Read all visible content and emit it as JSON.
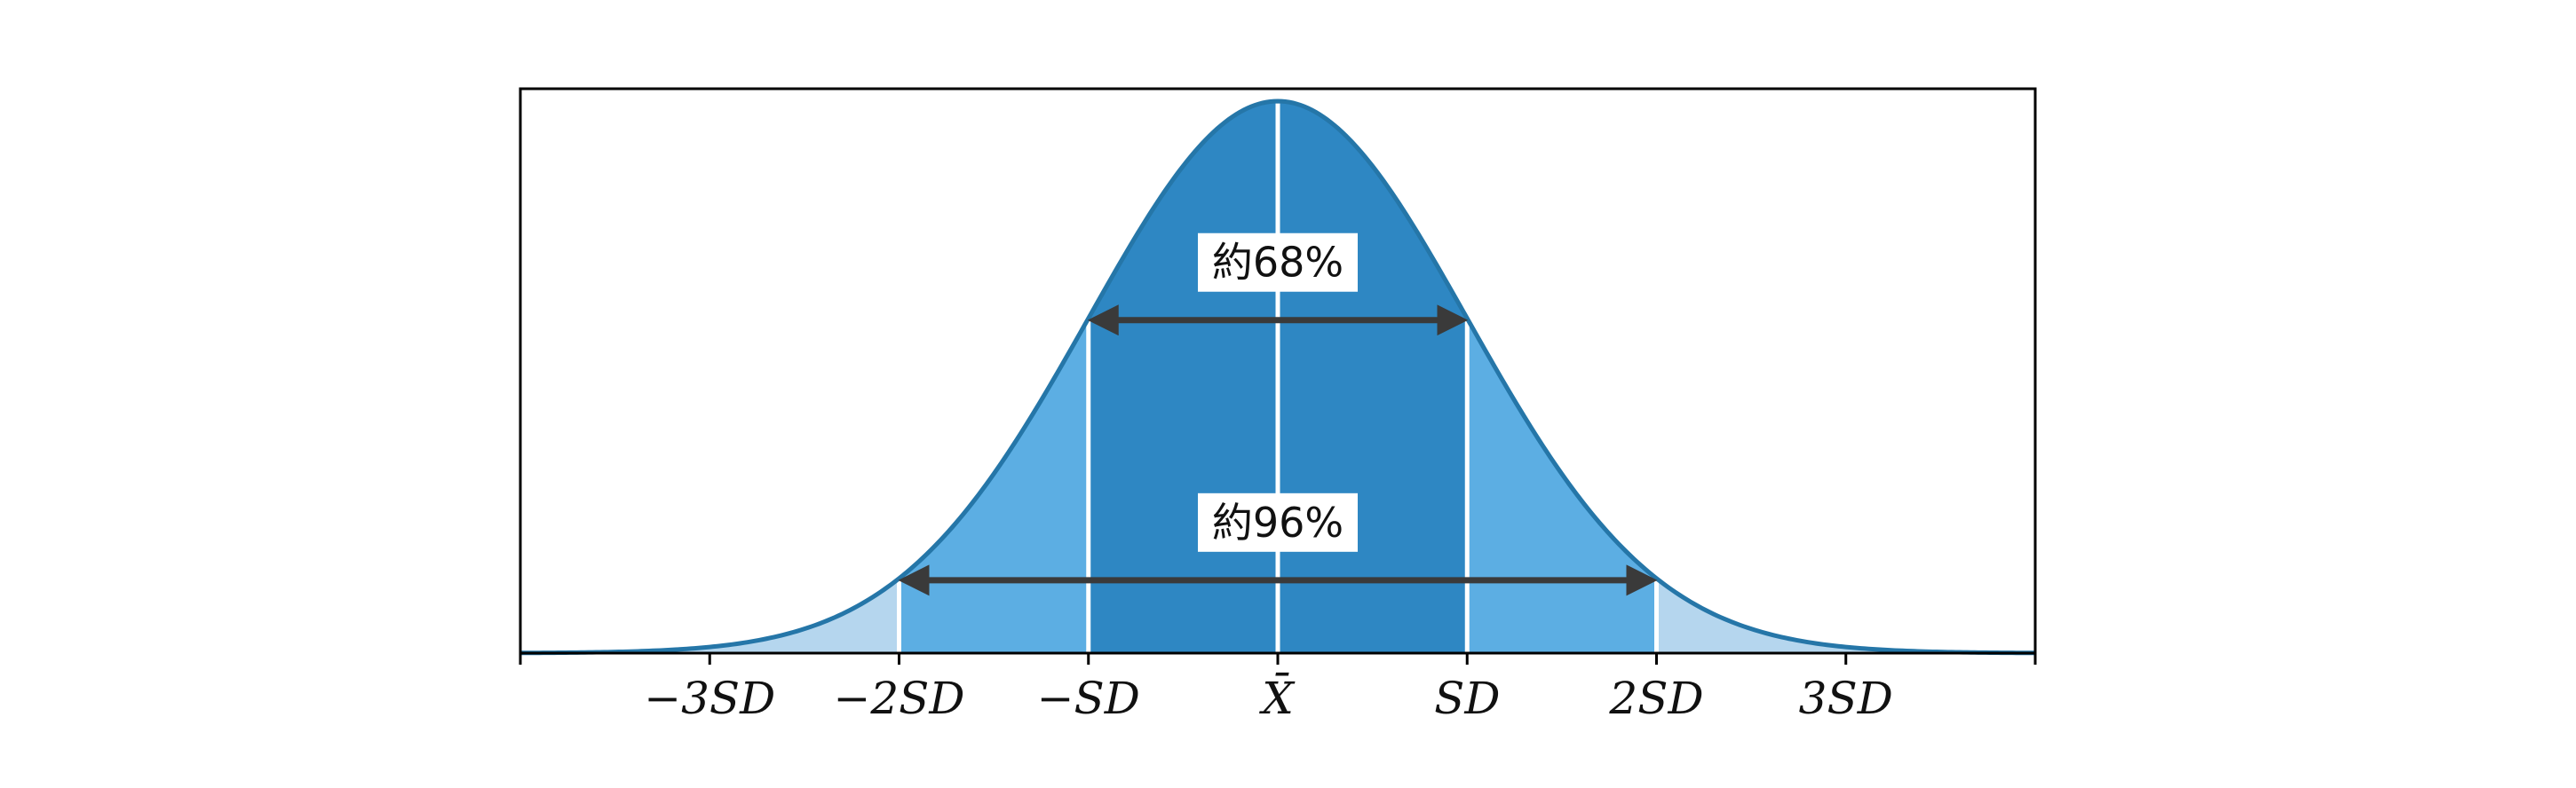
{
  "chart_data": {
    "type": "area",
    "title": "",
    "xlabel": "",
    "ylabel": "",
    "distribution": "normal",
    "mean": 0,
    "sd": 1,
    "xlim": [
      -4,
      4
    ],
    "tick_labels": [
      {
        "x": -3,
        "label": "−3SD"
      },
      {
        "x": -2,
        "label": "−2SD"
      },
      {
        "x": -1,
        "label": "−SD"
      },
      {
        "x": 0,
        "label": "X̄"
      },
      {
        "x": 1,
        "label": "SD"
      },
      {
        "x": 2,
        "label": "2SD"
      },
      {
        "x": 3,
        "label": "3SD"
      }
    ],
    "bands": [
      {
        "from": -4,
        "to": -2,
        "color": "#b5d6ee"
      },
      {
        "from": -2,
        "to": -1,
        "color": "#5caee3"
      },
      {
        "from": -1,
        "to": 1,
        "color": "#2e87c3"
      },
      {
        "from": 1,
        "to": 2,
        "color": "#5caee3"
      },
      {
        "from": 2,
        "to": 4,
        "color": "#b5d6ee"
      }
    ],
    "annotations": [
      {
        "from": -1,
        "to": 1,
        "label": "約68%"
      },
      {
        "from": -2,
        "to": 2,
        "label": "約96%"
      }
    ],
    "colors": {
      "curve_outline": "#2576a8",
      "divider": "#ffffff",
      "arrow": "#3a3a3a",
      "frame": "#000000"
    }
  }
}
